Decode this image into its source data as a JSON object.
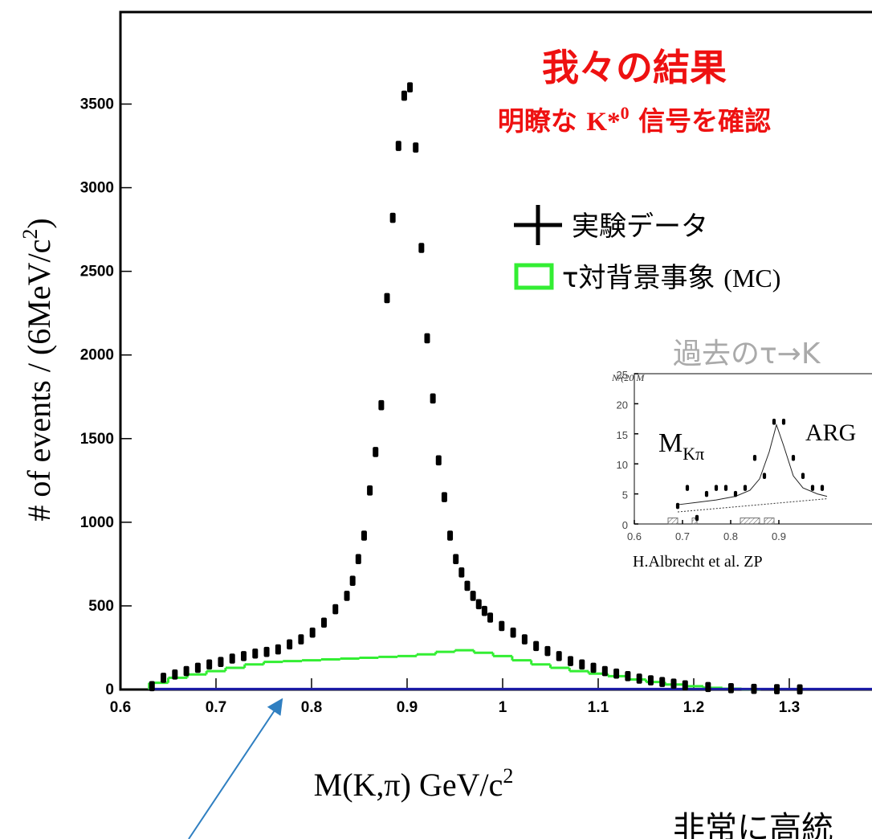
{
  "chart_data": [
    {
      "type": "scatter",
      "title": "我々の結果",
      "subtitle": {
        "before": "明瞭な",
        "particle": "K*",
        "superscript": "0",
        "after": "信号を確認"
      },
      "xlabel": {
        "text": "M(K,π) GeV/c",
        "superscript": "2"
      },
      "ylabel": {
        "text": "# of events / (6MeV/c",
        "superscript": "2",
        "close": ")"
      },
      "legend": [
        {
          "label": "実験データ"
        },
        {
          "label": "τ対背景事象",
          "suffix": "(MC)"
        }
      ],
      "annotation": "非常に高統",
      "points": {
        "color": "#000000",
        "x": [
          0.633,
          0.645,
          0.657,
          0.669,
          0.681,
          0.693,
          0.705,
          0.717,
          0.729,
          0.741,
          0.753,
          0.765,
          0.777,
          0.789,
          0.801,
          0.813,
          0.825,
          0.837,
          0.843,
          0.849,
          0.855,
          0.861,
          0.867,
          0.873,
          0.879,
          0.885,
          0.891,
          0.897,
          0.903,
          0.909,
          0.915,
          0.921,
          0.927,
          0.933,
          0.939,
          0.945,
          0.951,
          0.957,
          0.963,
          0.969,
          0.975,
          0.981,
          0.987,
          0.999,
          1.011,
          1.023,
          1.035,
          1.047,
          1.059,
          1.071,
          1.083,
          1.095,
          1.107,
          1.119,
          1.131,
          1.143,
          1.155,
          1.167,
          1.179,
          1.191,
          1.215,
          1.239,
          1.263,
          1.287,
          1.311
        ],
        "values": [
          20,
          70,
          90,
          110,
          130,
          150,
          165,
          185,
          200,
          215,
          225,
          240,
          270,
          300,
          340,
          400,
          480,
          560,
          650,
          780,
          920,
          1190,
          1420,
          1700,
          2340,
          2820,
          3250,
          3550,
          3600,
          3240,
          2640,
          2100,
          1740,
          1370,
          1150,
          920,
          780,
          700,
          620,
          560,
          510,
          470,
          430,
          380,
          340,
          300,
          260,
          230,
          200,
          170,
          150,
          130,
          110,
          95,
          80,
          65,
          55,
          45,
          35,
          25,
          15,
          8,
          4,
          2,
          1
        ]
      },
      "background": {
        "color": "#33ee33",
        "bins": [
          0.63,
          0.65,
          0.67,
          0.69,
          0.71,
          0.73,
          0.75,
          0.77,
          0.79,
          0.81,
          0.83,
          0.85,
          0.87,
          0.89,
          0.91,
          0.93,
          0.95,
          0.97,
          0.99,
          1.01,
          1.03,
          1.05,
          1.07,
          1.09,
          1.11,
          1.13,
          1.15,
          1.17,
          1.19,
          1.21,
          1.23,
          1.25,
          1.27
        ],
        "counts": [
          40,
          70,
          90,
          110,
          130,
          150,
          165,
          170,
          175,
          180,
          185,
          190,
          195,
          200,
          210,
          225,
          235,
          220,
          200,
          175,
          150,
          130,
          110,
          95,
          80,
          60,
          45,
          30,
          20,
          10,
          5,
          2
        ]
      },
      "baseline": {
        "color": "#1c1ca8",
        "x": [
          0.63,
          1.4
        ],
        "values": [
          3,
          3
        ]
      },
      "xlim": [
        0.6,
        1.4
      ],
      "ylim": [
        0,
        4050
      ],
      "xticks": [
        0.6,
        0.7,
        0.8,
        0.9,
        1,
        1.1,
        1.2,
        1.3
      ],
      "yticks": [
        0,
        500,
        1000,
        1500,
        2000,
        2500,
        3000,
        3500
      ]
    },
    {
      "type": "scatter",
      "title": "過去のτ→K",
      "ylabel": "N/(20 M",
      "label": {
        "text": "M",
        "subscript": "Kπ"
      },
      "experiment": "ARG",
      "citation": "H.Albrecht et al. ZP",
      "points": {
        "color": "#000000",
        "x": [
          0.69,
          0.71,
          0.73,
          0.75,
          0.77,
          0.79,
          0.81,
          0.83,
          0.85,
          0.87,
          0.89,
          0.91,
          0.93,
          0.95,
          0.97,
          0.99
        ],
        "values": [
          3,
          6,
          1,
          5,
          6,
          6,
          5,
          6,
          11,
          8,
          17,
          17,
          11,
          8,
          6,
          6
        ]
      },
      "fit": {
        "x": [
          0.69,
          0.73,
          0.77,
          0.81,
          0.84,
          0.86,
          0.88,
          0.895,
          0.91,
          0.93,
          0.95,
          0.98,
          1.0
        ],
        "values": [
          3.2,
          3.6,
          4.0,
          4.6,
          5.6,
          7.5,
          12,
          16.5,
          13,
          8,
          6,
          5,
          4.6
        ]
      },
      "fit_background": {
        "x": [
          0.69,
          1.0
        ],
        "values": [
          2.0,
          4.2
        ]
      },
      "hatched": {
        "bins": [
          0.67,
          0.69,
          0.72,
          0.73,
          0.82,
          0.86,
          0.87,
          0.89
        ],
        "counts": [
          1,
          0,
          1,
          0,
          1,
          0,
          1
        ]
      },
      "xlim": [
        0.6,
        1.1
      ],
      "ylim": [
        0,
        25
      ],
      "xticks": [
        0.6,
        0.7,
        0.8,
        0.9
      ],
      "yticks": [
        0,
        5,
        10,
        15,
        20,
        25
      ]
    }
  ]
}
